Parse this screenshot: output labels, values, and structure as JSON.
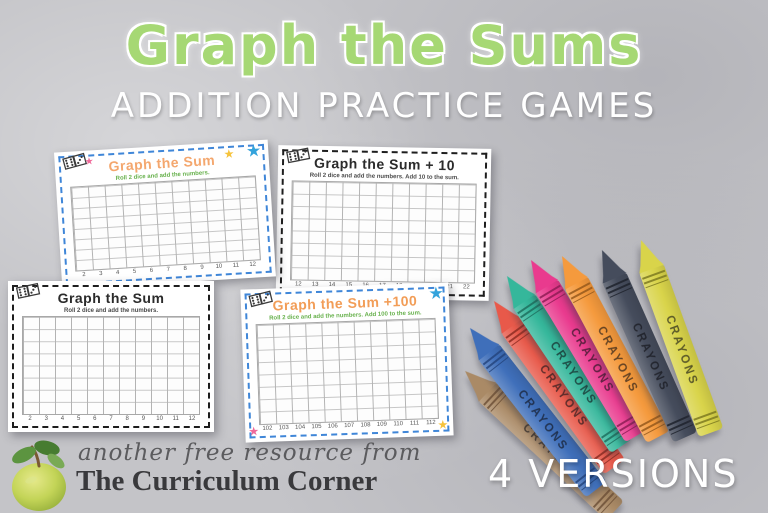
{
  "page": {
    "title": "Graph the Sums",
    "subtitle": "ADDITION PRACTICE GAMES",
    "versions_label": "4 VERSIONS"
  },
  "branding": {
    "tagline": "another free resource from",
    "name": "The Curriculum Corner"
  },
  "worksheets": [
    {
      "id": "graph-the-sum-color",
      "title": "Graph the Sum",
      "instructions": "Roll 2 dice and add the numbers.",
      "numbers": [
        "2",
        "3",
        "4",
        "5",
        "6",
        "7",
        "8",
        "9",
        "10",
        "11",
        "12"
      ],
      "border_color": "#3f86d8",
      "title_color": "#f4a76e",
      "instr_color": "#67b14c",
      "decorations": [
        "dice-icon",
        "pink-star",
        "yellow-star",
        "blue-star"
      ]
    },
    {
      "id": "graph-the-sum-plus-10",
      "title": "Graph the Sum + 10",
      "instructions": "Roll 2 dice and add the numbers. Add 10 to the sum.",
      "numbers": [
        "12",
        "13",
        "14",
        "15",
        "16",
        "17",
        "18",
        "19",
        "20",
        "21",
        "22"
      ],
      "border_color": "#1e1e1e",
      "title_color": "#2b2b2b",
      "instr_color": "#4a4a4a",
      "decorations": [
        "dice-icon"
      ]
    },
    {
      "id": "graph-the-sum-bw",
      "title": "Graph the Sum",
      "instructions": "Roll 2 dice and add the numbers.",
      "numbers": [
        "2",
        "3",
        "4",
        "5",
        "6",
        "7",
        "8",
        "9",
        "10",
        "11",
        "12"
      ],
      "border_color": "#1e1e1e",
      "title_color": "#2b2b2b",
      "instr_color": "#4a4a4a",
      "decorations": [
        "dice-icon"
      ]
    },
    {
      "id": "graph-the-sum-plus-100",
      "title": "Graph the Sum +100",
      "instructions": "Roll 2 dice and add the numbers. Add 100 to the sum.",
      "numbers": [
        "102",
        "103",
        "104",
        "105",
        "106",
        "107",
        "108",
        "109",
        "110",
        "111",
        "112"
      ],
      "border_color": "#3f86d8",
      "title_color": "#f29d57",
      "instr_color": "#67b14c",
      "decorations": [
        "dice-icon",
        "blue-star",
        "pink-star",
        "yellow-star"
      ]
    }
  ],
  "crayons": {
    "label": "CRAYONS",
    "items": [
      {
        "name": "brown",
        "color": "#aa8a66",
        "dark": "#6e5138"
      },
      {
        "name": "blue",
        "color": "#3f6fba",
        "dark": "#24457e"
      },
      {
        "name": "red",
        "color": "#e8594a",
        "dark": "#8f2c22"
      },
      {
        "name": "teal",
        "color": "#35b79b",
        "dark": "#1d6f5e"
      },
      {
        "name": "pink",
        "color": "#e93a8e",
        "dark": "#8f1c55"
      },
      {
        "name": "orange",
        "color": "#f59a3d",
        "dark": "#96591b"
      },
      {
        "name": "charcoal",
        "color": "#454c5c",
        "dark": "#1e222c"
      },
      {
        "name": "yellow",
        "color": "#d9d44a",
        "dark": "#7d7a20"
      }
    ]
  },
  "colors": {
    "background": "#c4c4c8",
    "title_green": "#a6d874",
    "subtitle_white": "#ffffff"
  }
}
